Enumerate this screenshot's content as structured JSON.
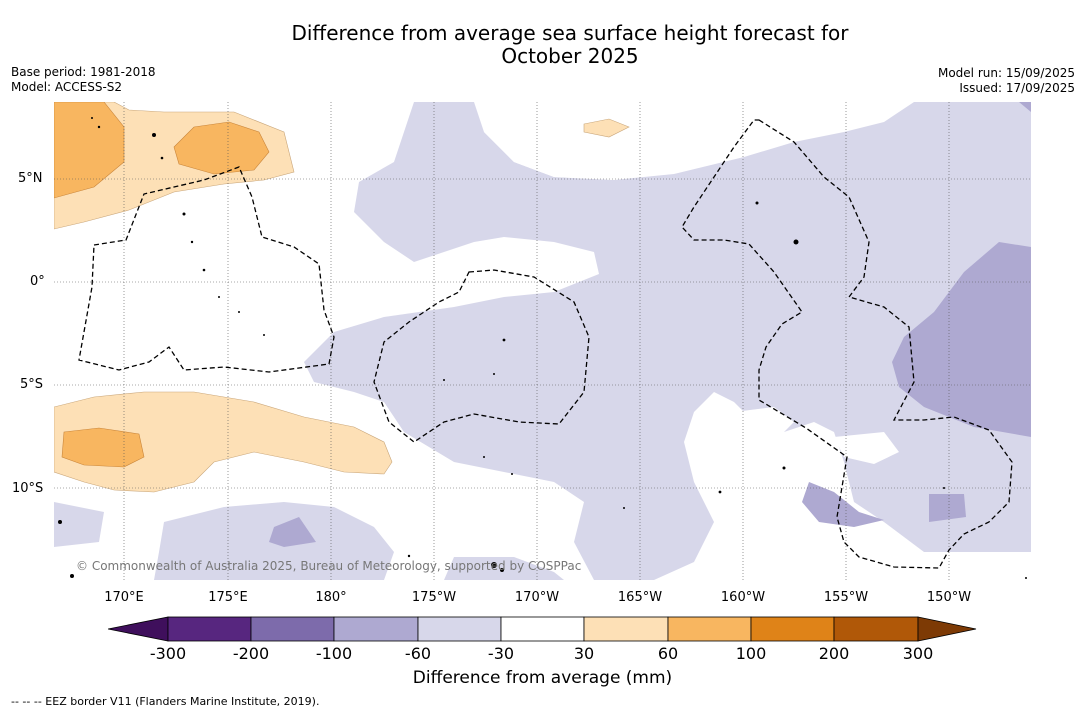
{
  "title_line1": "Difference from average sea surface height forecast for",
  "title_line2": "October 2025",
  "base_period": "Base period: 1981-2018",
  "model": "Model: ACCESS-S2",
  "model_run": "Model run: 15/09/2025",
  "issued": "Issued: 17/09/2025",
  "lat_labels": [
    "5°N",
    "0°",
    "5°S",
    "10°S"
  ],
  "lon_labels": [
    "170°E",
    "175°E",
    "180°",
    "175°W",
    "170°W",
    "165°W",
    "160°W",
    "155°W",
    "150°W"
  ],
  "copyright": "© Commonwealth of Australia 2025, Bureau of Meteorology, supported by COSPPac",
  "colorbar": {
    "ticks": [
      "-300",
      "-200",
      "-100",
      "-60",
      "-30",
      "30",
      "60",
      "100",
      "200",
      "300"
    ],
    "colors": [
      "#3f0f5c",
      "#57267f",
      "#7d6bab",
      "#aea9d1",
      "#d7d7ea",
      "#ffffff",
      "#fde0b6",
      "#f8b660",
      "#df8318",
      "#b05808",
      "#7d3a05"
    ],
    "label": "Difference from average (mm)"
  },
  "eez_note": "--  --  -- EEZ border V11 (Flanders Marine Institute, 2019)."
}
